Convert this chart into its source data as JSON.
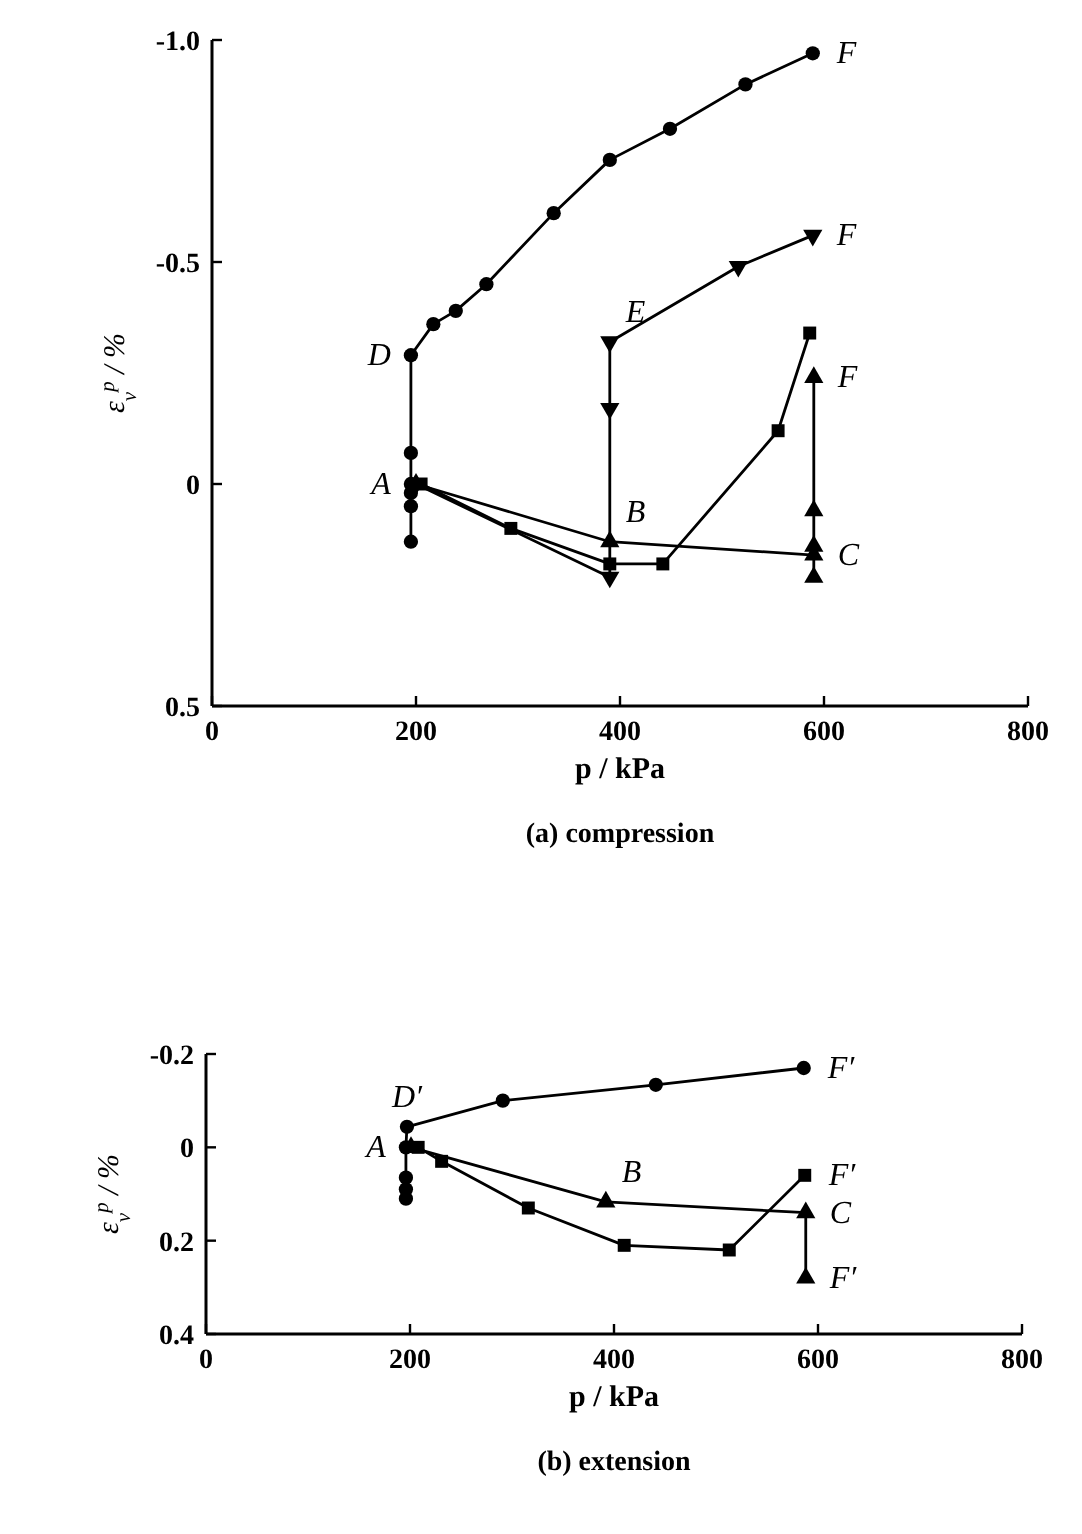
{
  "chart_data": [
    {
      "type": "line",
      "title": "(a) compression",
      "xlabel": "p / kPa",
      "ylabel": "ε$_{v}$$^{p}$ / %",
      "xlim": [
        0,
        800
      ],
      "xticks": [
        0,
        200,
        400,
        600,
        800
      ],
      "ylim": [
        0.5,
        -1.0
      ],
      "yticks": [
        {
          "value": -1.0,
          "label": "-1.0"
        },
        {
          "value": -0.5,
          "label": "-0.5"
        },
        0,
        0.5
      ],
      "grid": false,
      "line_style": "solid",
      "series": [
        {
          "color": "#000000",
          "marker": "circle",
          "x": [
            195,
            195,
            195,
            195,
            195,
            195,
            217,
            239,
            269,
            335,
            390,
            449,
            523,
            589
          ],
          "values": [
            0.13,
            0.05,
            0.02,
            0,
            -0.07,
            -0.29,
            -0.36,
            -0.39,
            -0.45,
            -0.61,
            -0.73,
            -0.8,
            -0.9,
            -0.97
          ]
        },
        {
          "color": "#000000",
          "marker": "triangle-down",
          "x": [
            200,
            390,
            390,
            390,
            516,
            589
          ],
          "values": [
            0,
            0.21,
            -0.17,
            -0.32,
            -0.49,
            -0.56
          ]
        },
        {
          "color": "#000000",
          "marker": "square",
          "x": [
            205,
            293,
            390,
            442,
            555,
            586
          ],
          "values": [
            0,
            0.1,
            0.18,
            0.18,
            -0.12,
            -0.34
          ]
        },
        {
          "color": "#000000",
          "marker": "triangle",
          "x": [
            200,
            390,
            590,
            590,
            590,
            590,
            590
          ],
          "values": [
            0,
            0.13,
            0.16,
            0.21,
            0.14,
            0.06,
            -0.24
          ]
        }
      ],
      "annotations": [
        {
          "text": "A",
          "x": 195,
          "y": 0
        },
        {
          "text": "D",
          "x": 195,
          "y": -0.29
        },
        {
          "text": "E",
          "x": 390,
          "y": -0.32
        },
        {
          "text": "B",
          "x": 390,
          "y": 0.13
        },
        {
          "text": "F",
          "x": 589,
          "y": -0.97
        },
        {
          "text": "F",
          "x": 589,
          "y": -0.56
        },
        {
          "text": "F",
          "x": 590,
          "y": -0.24
        },
        {
          "text": "C",
          "x": 590,
          "y": 0.16
        }
      ]
    },
    {
      "type": "line",
      "title": "(b) extension",
      "xlabel": "p / kPa",
      "ylabel": "ε$_{v}$$^{p}$ / %",
      "xlim": [
        0,
        800
      ],
      "xticks": [
        0,
        200,
        400,
        600,
        800
      ],
      "ylim": [
        0.4,
        -0.2
      ],
      "yticks": [
        {
          "value": -0.2,
          "label": "-0.2"
        },
        0,
        0.2,
        0.4
      ],
      "grid": false,
      "line_style": "solid",
      "series": [
        {
          "color": "#000000",
          "marker": "circle",
          "x": [
            196,
            196,
            196,
            196,
            197,
            291,
            441,
            586
          ],
          "values": [
            0.11,
            0.09,
            0.065,
            0,
            -0.044,
            -0.1,
            -0.134,
            -0.17
          ]
        },
        {
          "color": "#000000",
          "marker": "square",
          "x": [
            208,
            231,
            316,
            410,
            513,
            587
          ],
          "values": [
            0,
            0.03,
            0.13,
            0.21,
            0.22,
            0.06
          ]
        },
        {
          "color": "#000000",
          "marker": "triangle",
          "x": [
            201,
            392,
            588,
            588
          ],
          "values": [
            0,
            0.117,
            0.14,
            0.28
          ]
        }
      ],
      "annotations": [
        {
          "text": "A",
          "x": 196,
          "y": 0
        },
        {
          "text": "D′",
          "x": 197,
          "y": -0.044
        },
        {
          "text": "B",
          "x": 392,
          "y": 0.117
        },
        {
          "text": "F′",
          "x": 586,
          "y": -0.17
        },
        {
          "text": "F′",
          "x": 587,
          "y": 0.06
        },
        {
          "text": "C",
          "x": 588,
          "y": 0.14
        },
        {
          "text": "F′",
          "x": 588,
          "y": 0.28
        }
      ]
    }
  ]
}
